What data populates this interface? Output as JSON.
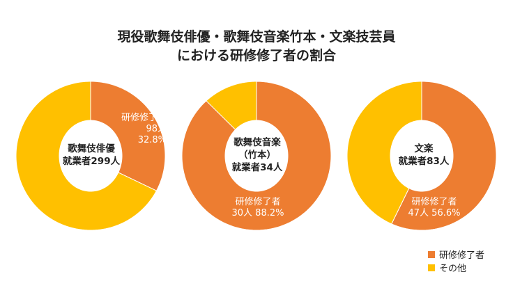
{
  "chart_data": {
    "type": "pie",
    "title_line1": "現役歌舞伎俳優・歌舞伎音楽竹本・文楽技芸員",
    "title_line2": "における研修修了者の割合",
    "legend": [
      {
        "label": "研修修了者",
        "color": "#ED7D31"
      },
      {
        "label": "その他",
        "color": "#FFC000"
      }
    ],
    "legend_placement": "bottom-right",
    "charts": [
      {
        "name_lines": [
          "歌舞伎俳優",
          "就業者299人"
        ],
        "total": 299,
        "trained": 98,
        "trained_pct": 32.8,
        "label_lines": [
          "研修修了者",
          "98人",
          "32.8%"
        ]
      },
      {
        "name_lines": [
          "歌舞伎音楽",
          "（竹本）",
          "就業者34人"
        ],
        "total": 34,
        "trained": 30,
        "trained_pct": 88.2,
        "label_lines": [
          "研修修了者",
          "30人 88.2%"
        ]
      },
      {
        "name_lines": [
          "文楽",
          "就業者83人"
        ],
        "total": 83,
        "trained": 47,
        "trained_pct": 56.6,
        "label_lines": [
          "研修修了者",
          "47人 56.6%"
        ]
      }
    ]
  }
}
